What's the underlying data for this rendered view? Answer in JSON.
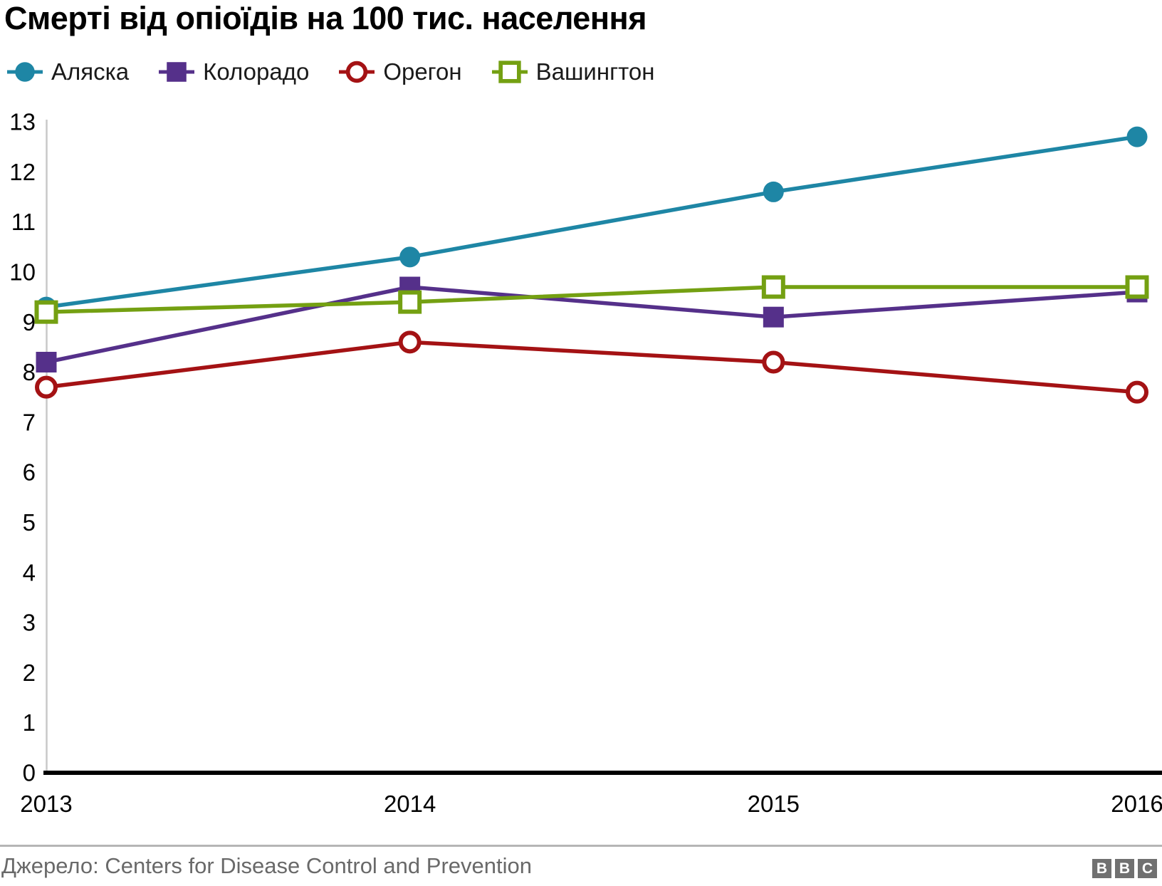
{
  "header": {
    "title": "Смерті від опіоїдів на 100 тис. населення"
  },
  "chart_data": {
    "type": "line",
    "title": "Смерті від опіоїдів на 100 тис. населення",
    "categories": [
      "2013",
      "2014",
      "2015",
      "2016"
    ],
    "series": [
      {
        "name": "Аляска",
        "color": "#1E86A5",
        "marker": "circle-filled",
        "values": [
          9.3,
          10.3,
          11.6,
          12.7
        ]
      },
      {
        "name": "Колорадо",
        "color": "#55308A",
        "marker": "square-filled",
        "values": [
          8.2,
          9.7,
          9.1,
          9.6
        ]
      },
      {
        "name": "Орегон",
        "color": "#A41214",
        "marker": "circle-open",
        "values": [
          7.7,
          8.6,
          8.2,
          7.6
        ]
      },
      {
        "name": "Вашингтон",
        "color": "#74A012",
        "marker": "square-open",
        "values": [
          9.2,
          9.4,
          9.7,
          9.7
        ]
      }
    ],
    "ylim": [
      0,
      13
    ],
    "ytick_step": 1,
    "grid": false,
    "legend_position": "top",
    "axis_color": "#000000",
    "yaxis_line_color": "#c9c9c9"
  },
  "footer": {
    "source": "Джерело: Centers for Disease Control and Prevention",
    "logo_letters": [
      "B",
      "B",
      "C"
    ]
  }
}
